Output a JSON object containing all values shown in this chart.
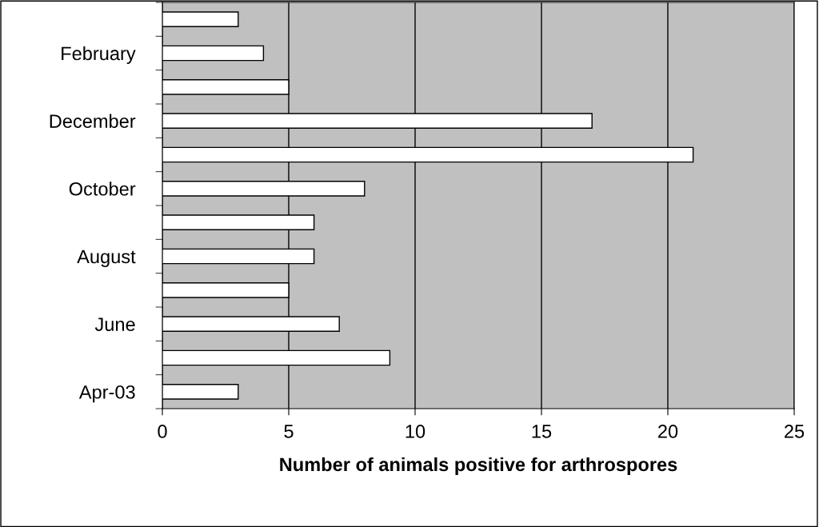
{
  "chart_data": {
    "type": "bar",
    "orientation": "horizontal",
    "categories": [
      null,
      "February",
      null,
      "December",
      null,
      "October",
      null,
      "August",
      null,
      "June",
      null,
      "Apr-03"
    ],
    "values": [
      3,
      4,
      5,
      17,
      21,
      8,
      6,
      6,
      5,
      7,
      9,
      3
    ],
    "color": "#ffffff",
    "xlabel": "Number of animals positive for arthrospores",
    "xlim": [
      0,
      25
    ],
    "xticks": [
      0,
      5,
      10,
      15,
      20,
      25
    ],
    "grid": "x"
  }
}
